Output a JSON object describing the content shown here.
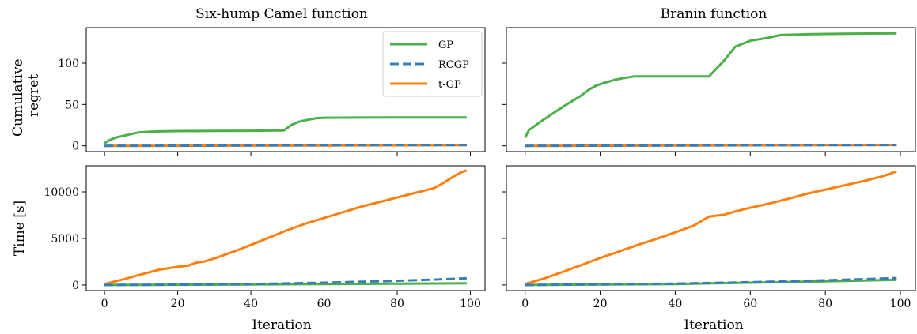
{
  "colors": {
    "GP": "#4daf4a",
    "RCGP": "#377eb8",
    "t-GP": "#ff7f0e"
  },
  "legend": {
    "placement": "top-right",
    "panel": "top-left",
    "entries": [
      {
        "label": "GP",
        "style": "solid"
      },
      {
        "label": "RCGP",
        "style": "dashed"
      },
      {
        "label": "t-GP",
        "style": "solid"
      }
    ]
  },
  "columns": [
    {
      "title": "Six-hump Camel function"
    },
    {
      "title": "Branin function"
    }
  ],
  "rows": [
    {
      "ylabel_lines": [
        "Cumulative",
        "regret"
      ]
    },
    {
      "ylabel_lines": [
        "Time [s]"
      ]
    }
  ],
  "shared": {
    "xlabel": "Iteration",
    "xlim": [
      -5,
      104
    ],
    "xticks": [
      0,
      20,
      40,
      60,
      80,
      100
    ]
  },
  "chart_data": [
    {
      "type": "line",
      "title": "Six-hump Camel function",
      "xlabel": "",
      "ylabel": "Cumulative regret",
      "ylim": [
        -7,
        143
      ],
      "yticks": [
        0,
        50,
        100
      ],
      "grid": false,
      "series": [
        {
          "name": "GP",
          "x": [
            0,
            1,
            3,
            6,
            9,
            12,
            15,
            20,
            30,
            40,
            49,
            51,
            53,
            55,
            58,
            60,
            70,
            80,
            90,
            99
          ],
          "y": [
            3,
            6,
            10,
            13,
            16,
            17,
            17.5,
            17.8,
            18,
            18.2,
            18.5,
            25,
            29,
            31,
            33.5,
            34,
            34.2,
            34.3,
            34.3,
            34.3
          ]
        },
        {
          "name": "RCGP",
          "x": [
            0,
            20,
            40,
            60,
            80,
            99
          ],
          "y": [
            0,
            0.2,
            0.5,
            0.8,
            1,
            1
          ]
        },
        {
          "name": "t-GP",
          "x": [
            0,
            20,
            40,
            60,
            80,
            99
          ],
          "y": [
            0,
            0.1,
            0.3,
            0.5,
            0.6,
            0.7
          ]
        }
      ]
    },
    {
      "type": "line",
      "title": "Branin function",
      "xlabel": "",
      "ylabel": "",
      "ylim": [
        -7,
        143
      ],
      "yticks": [
        0,
        50,
        100
      ],
      "grid": false,
      "series": [
        {
          "name": "GP",
          "x": [
            0,
            1,
            5,
            10,
            15,
            17,
            19,
            21,
            24,
            27,
            29,
            33,
            40,
            49,
            53,
            56,
            60,
            65,
            68,
            75,
            85,
            99
          ],
          "y": [
            10,
            19,
            32,
            47,
            61,
            68,
            73,
            76,
            80,
            82.5,
            84,
            84,
            84,
            84,
            103,
            120,
            127,
            131,
            134,
            135,
            135.5,
            136
          ]
        },
        {
          "name": "RCGP",
          "x": [
            0,
            20,
            40,
            60,
            80,
            99
          ],
          "y": [
            0,
            0.2,
            0.4,
            0.6,
            0.8,
            1
          ]
        },
        {
          "name": "t-GP",
          "x": [
            0,
            20,
            40,
            60,
            80,
            99
          ],
          "y": [
            0,
            0.2,
            0.4,
            0.6,
            0.8,
            1
          ]
        }
      ]
    },
    {
      "type": "line",
      "title": "",
      "xlabel": "Iteration",
      "ylabel": "Time [s]",
      "ylim": [
        -600,
        12800
      ],
      "yticks": [
        0,
        5000,
        10000
      ],
      "grid": false,
      "series": [
        {
          "name": "GP",
          "x": [
            0,
            20,
            40,
            60,
            80,
            99
          ],
          "y": [
            0,
            30,
            60,
            100,
            140,
            180
          ]
        },
        {
          "name": "RCGP",
          "x": [
            0,
            20,
            40,
            60,
            80,
            90,
            99
          ],
          "y": [
            0,
            40,
            100,
            250,
            450,
            580,
            720
          ]
        },
        {
          "name": "t-GP",
          "x": [
            0,
            5,
            10,
            15,
            20,
            23,
            25,
            27,
            30,
            35,
            40,
            45,
            50,
            55,
            60,
            65,
            70,
            75,
            80,
            85,
            90,
            92,
            94,
            96,
            98,
            99
          ],
          "y": [
            100,
            600,
            1150,
            1650,
            1950,
            2100,
            2400,
            2500,
            2850,
            3550,
            4300,
            5100,
            5900,
            6600,
            7200,
            7800,
            8400,
            8900,
            9400,
            9900,
            10400,
            10800,
            11300,
            11800,
            12200,
            12300
          ]
        }
      ]
    },
    {
      "type": "line",
      "title": "",
      "xlabel": "Iteration",
      "ylabel": "",
      "ylim": [
        -600,
        12800
      ],
      "yticks": [
        0,
        5000,
        10000
      ],
      "grid": false,
      "series": [
        {
          "name": "GP",
          "x": [
            0,
            20,
            40,
            60,
            80,
            99
          ],
          "y": [
            0,
            50,
            100,
            250,
            400,
            550
          ]
        },
        {
          "name": "RCGP",
          "x": [
            0,
            20,
            40,
            60,
            80,
            99
          ],
          "y": [
            0,
            60,
            150,
            300,
            500,
            750
          ]
        },
        {
          "name": "t-GP",
          "x": [
            0,
            5,
            10,
            15,
            20,
            25,
            30,
            35,
            40,
            45,
            49,
            53,
            56,
            60,
            65,
            70,
            75,
            80,
            85,
            90,
            95,
            99
          ],
          "y": [
            100,
            700,
            1400,
            2150,
            2900,
            3600,
            4300,
            4950,
            5650,
            6400,
            7350,
            7550,
            7900,
            8300,
            8750,
            9250,
            9800,
            10250,
            10700,
            11150,
            11650,
            12200
          ]
        }
      ]
    }
  ]
}
